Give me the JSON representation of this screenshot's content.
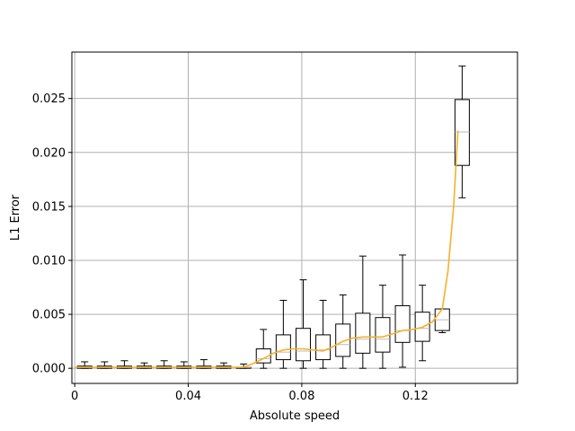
{
  "chart_data": {
    "type": "box",
    "xlabel": "Absolute speed",
    "ylabel": "L1 Error",
    "xlim": [
      -0.001,
      0.156
    ],
    "ylim": [
      -0.0014,
      0.0293
    ],
    "xticks": [
      0,
      0.04,
      0.08,
      0.12
    ],
    "xtick_labels": [
      "0",
      "0.04",
      "0.08",
      "0.12"
    ],
    "yticks": [
      0.0,
      0.005,
      0.01,
      0.015,
      0.02,
      0.025
    ],
    "ytick_labels": [
      "0.000",
      "0.005",
      "0.010",
      "0.015",
      "0.020",
      "0.025"
    ],
    "grid": true,
    "colors": {
      "box": "#000000",
      "trend": "#f7b02b",
      "grid": "#b0b0b0",
      "outlier": "#bbbbbb"
    },
    "boxes": [
      {
        "x": 0.0035,
        "whislo": 0.0,
        "q1": 0.0,
        "med": 0.0001,
        "q3": 0.0002,
        "whishi": 0.0006
      },
      {
        "x": 0.0105,
        "whislo": 0.0,
        "q1": 0.0,
        "med": 0.0001,
        "q3": 0.0002,
        "whishi": 0.0006
      },
      {
        "x": 0.0175,
        "whislo": 0.0,
        "q1": 0.0,
        "med": 0.0001,
        "q3": 0.0002,
        "whishi": 0.0007
      },
      {
        "x": 0.0245,
        "whislo": 0.0,
        "q1": 0.0,
        "med": 0.0001,
        "q3": 0.0002,
        "whishi": 0.0005
      },
      {
        "x": 0.0315,
        "whislo": 0.0,
        "q1": 0.0,
        "med": 0.0001,
        "q3": 0.0002,
        "whishi": 0.0007
      },
      {
        "x": 0.0385,
        "whislo": 0.0,
        "q1": 0.0,
        "med": 0.0001,
        "q3": 0.0002,
        "whishi": 0.0006
      },
      {
        "x": 0.0455,
        "whislo": 0.0,
        "q1": 0.0,
        "med": 0.0001,
        "q3": 0.0002,
        "whishi": 0.0008
      },
      {
        "x": 0.0525,
        "whislo": 0.0,
        "q1": 0.0,
        "med": 0.0001,
        "q3": 0.0002,
        "whishi": 0.0005
      },
      {
        "x": 0.0595,
        "whislo": 0.0,
        "q1": 0.0,
        "med": 0.0001,
        "q3": 0.0001,
        "whishi": 0.0004
      },
      {
        "x": 0.0665,
        "whislo": 0.0,
        "q1": 0.0005,
        "med": 0.0009,
        "q3": 0.0018,
        "whishi": 0.0036
      },
      {
        "x": 0.0735,
        "whislo": 0.0,
        "q1": 0.0008,
        "med": 0.0015,
        "q3": 0.0031,
        "whishi": 0.0063
      },
      {
        "x": 0.0805,
        "whislo": 0.0,
        "q1": 0.0007,
        "med": 0.0016,
        "q3": 0.0037,
        "whishi": 0.0082
      },
      {
        "x": 0.0875,
        "whislo": 0.0,
        "q1": 0.0008,
        "med": 0.0017,
        "q3": 0.0031,
        "whishi": 0.0063
      },
      {
        "x": 0.0945,
        "whislo": 0.0,
        "q1": 0.0011,
        "med": 0.0022,
        "q3": 0.0041,
        "whishi": 0.0068
      },
      {
        "x": 0.1015,
        "whislo": 0.0,
        "q1": 0.0014,
        "med": 0.0027,
        "q3": 0.0051,
        "whishi": 0.0104
      },
      {
        "x": 0.1085,
        "whislo": 0.0,
        "q1": 0.0015,
        "med": 0.0027,
        "q3": 0.0047,
        "whishi": 0.0077
      },
      {
        "x": 0.1155,
        "whislo": 0.0001,
        "q1": 0.0024,
        "med": 0.0035,
        "q3": 0.0058,
        "whishi": 0.0105
      },
      {
        "x": 0.1225,
        "whislo": 0.0007,
        "q1": 0.0025,
        "med": 0.0037,
        "q3": 0.0052,
        "whishi": 0.0077
      },
      {
        "x": 0.1295,
        "whislo": 0.0033,
        "q1": 0.0035,
        "med": 0.0045,
        "q3": 0.0055,
        "whishi": 0.0055
      },
      {
        "x": 0.1365,
        "whislo": 0.0158,
        "q1": 0.0188,
        "med": 0.0219,
        "q3": 0.0249,
        "whishi": 0.028
      }
    ],
    "trend": {
      "x": [
        0.0,
        0.0035,
        0.0105,
        0.0175,
        0.0245,
        0.0315,
        0.0385,
        0.0455,
        0.0525,
        0.0595,
        0.0625,
        0.0665,
        0.07,
        0.0735,
        0.077,
        0.0805,
        0.084,
        0.0875,
        0.091,
        0.0945,
        0.098,
        0.1015,
        0.105,
        0.1085,
        0.112,
        0.1155,
        0.119,
        0.1225,
        0.126,
        0.1295,
        0.1315,
        0.1335,
        0.135
      ],
      "y": [
        0.0001,
        0.0001,
        0.0001,
        0.0001,
        0.0001,
        0.0001,
        0.0001,
        0.0001,
        0.0001,
        0.0001,
        0.0004,
        0.0009,
        0.0014,
        0.0017,
        0.0018,
        0.0018,
        0.0017,
        0.0016,
        0.002,
        0.0025,
        0.0028,
        0.0029,
        0.0029,
        0.0029,
        0.0032,
        0.0035,
        0.0036,
        0.0038,
        0.0043,
        0.0055,
        0.009,
        0.015,
        0.022
      ]
    }
  }
}
